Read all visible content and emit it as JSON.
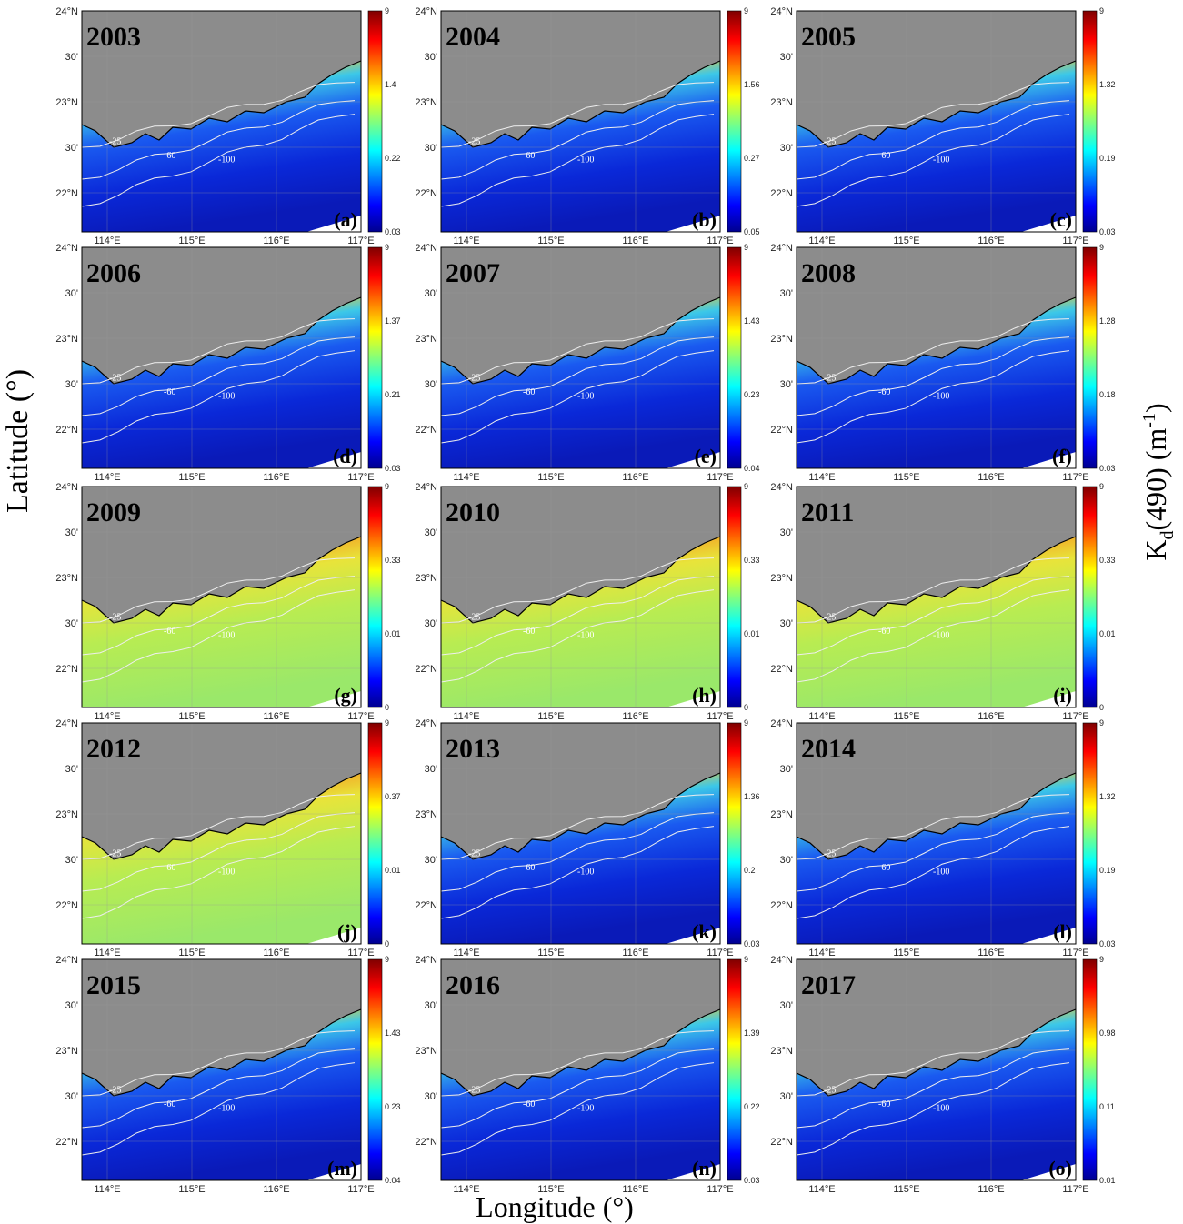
{
  "y_axis_title": "Latitude (°)",
  "x_axis_title": "Longitude (°)",
  "colorbar_title": {
    "main": "K",
    "sub": "d",
    "rest": "(490) (m",
    "sup": "-1",
    "end": ")"
  },
  "latitude_ticks": [
    "24°N",
    "30'",
    "23°N",
    "30'",
    "22°N"
  ],
  "longitude_ticks": [
    "114°E",
    "115°E",
    "116°E",
    "117°E"
  ],
  "contour_labels": [
    "-25",
    "-60",
    "-100"
  ],
  "panels": [
    {
      "year": "2003",
      "letter": "(a)",
      "colorbar_ticks": [
        "9",
        "1.4",
        "0.22",
        "0.03"
      ]
    },
    {
      "year": "2004",
      "letter": "(b)",
      "colorbar_ticks": [
        "9",
        "1.56",
        "0.27",
        "0.05"
      ]
    },
    {
      "year": "2005",
      "letter": "(c)",
      "colorbar_ticks": [
        "9",
        "1.32",
        "0.19",
        "0.03"
      ]
    },
    {
      "year": "2006",
      "letter": "(d)",
      "colorbar_ticks": [
        "9",
        "1.37",
        "0.21",
        "0.03"
      ]
    },
    {
      "year": "2007",
      "letter": "(e)",
      "colorbar_ticks": [
        "9",
        "1.43",
        "0.23",
        "0.04"
      ]
    },
    {
      "year": "2008",
      "letter": "(f)",
      "colorbar_ticks": [
        "9",
        "1.28",
        "0.18",
        "0.03"
      ]
    },
    {
      "year": "2009",
      "letter": "(g)",
      "colorbar_ticks": [
        "9",
        "0.33",
        "0.01",
        "0"
      ]
    },
    {
      "year": "2010",
      "letter": "(h)",
      "colorbar_ticks": [
        "9",
        "0.33",
        "0.01",
        "0"
      ]
    },
    {
      "year": "2011",
      "letter": "(i)",
      "colorbar_ticks": [
        "9",
        "0.33",
        "0.01",
        "0"
      ]
    },
    {
      "year": "2012",
      "letter": "(j)",
      "colorbar_ticks": [
        "9",
        "0.37",
        "0.01",
        "0"
      ]
    },
    {
      "year": "2013",
      "letter": "(k)",
      "colorbar_ticks": [
        "9",
        "1.36",
        "0.2",
        "0.03"
      ]
    },
    {
      "year": "2014",
      "letter": "(l)",
      "colorbar_ticks": [
        "9",
        "1.32",
        "0.19",
        "0.03"
      ]
    },
    {
      "year": "2015",
      "letter": "(m)",
      "colorbar_ticks": [
        "9",
        "1.43",
        "0.23",
        "0.04"
      ]
    },
    {
      "year": "2016",
      "letter": "(n)",
      "colorbar_ticks": [
        "9",
        "1.39",
        "0.22",
        "0.03"
      ]
    },
    {
      "year": "2017",
      "letter": "(o)",
      "colorbar_ticks": [
        "9",
        "0.98",
        "0.11",
        "0.01"
      ]
    }
  ]
}
